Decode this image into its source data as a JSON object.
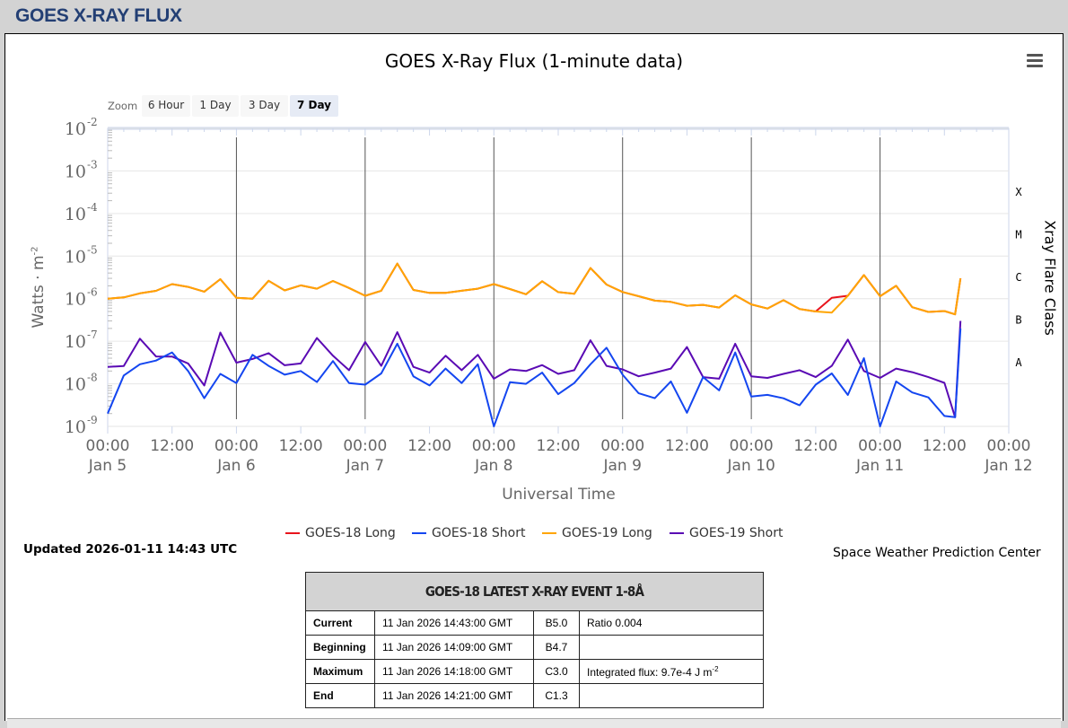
{
  "header": {
    "title": "GOES X-RAY FLUX"
  },
  "chart_header": {
    "menu_icon": "hamburger-icon"
  },
  "zoom": {
    "label": "Zoom",
    "buttons": [
      "6 Hour",
      "1 Day",
      "3 Day",
      "7 Day"
    ],
    "selected": "7 Day"
  },
  "legend": [
    {
      "name": "GOES-18 Long",
      "color": "#e8141c"
    },
    {
      "name": "GOES-18 Short",
      "color": "#1446f0"
    },
    {
      "name": "GOES-19 Long",
      "color": "#ffa500"
    },
    {
      "name": "GOES-19 Short",
      "color": "#5a0ab4"
    }
  ],
  "updated": "Updated 2026-01-11 14:43 UTC",
  "credit": "Space Weather Prediction Center",
  "event_table": {
    "title": "GOES-18 LATEST X-RAY EVENT 1-8Å",
    "rows": [
      {
        "label": "Current",
        "time": "11 Jan 2026 14:43:00 GMT",
        "class": "B5.0",
        "note": "Ratio 0.004"
      },
      {
        "label": "Beginning",
        "time": "11 Jan 2026 14:09:00 GMT",
        "class": "B4.7",
        "note": ""
      },
      {
        "label": "Maximum",
        "time": "11 Jan 2026 14:18:00 GMT",
        "class": "C3.0",
        "note": "Integrated flux: 9.7e-4 J m",
        "note_sup": "-2"
      },
      {
        "label": "End",
        "time": "11 Jan 2026 14:21:00 GMT",
        "class": "C1.3",
        "note": ""
      }
    ]
  },
  "chart_data": {
    "type": "line",
    "title": "GOES X-Ray Flux (1-minute data)",
    "xlabel": "Universal Time",
    "ylabel": "Watts · m",
    "ylabel_sup": "-2",
    "y2label": "Xray Flare Class",
    "yscale": "log",
    "ylim": [
      1e-09,
      0.01
    ],
    "yticks": [
      {
        "base": "10",
        "exp": "-2"
      },
      {
        "base": "10",
        "exp": "-3"
      },
      {
        "base": "10",
        "exp": "-4"
      },
      {
        "base": "10",
        "exp": "-5"
      },
      {
        "base": "10",
        "exp": "-6"
      },
      {
        "base": "10",
        "exp": "-7"
      },
      {
        "base": "10",
        "exp": "-8"
      },
      {
        "base": "10",
        "exp": "-9"
      }
    ],
    "flare_classes": [
      "X",
      "M",
      "C",
      "B",
      "A"
    ],
    "xlim_hours": [
      0,
      168
    ],
    "xticks": [
      {
        "t": "00:00",
        "d": "Jan 5"
      },
      {
        "t": "12:00",
        "d": ""
      },
      {
        "t": "00:00",
        "d": "Jan 6"
      },
      {
        "t": "12:00",
        "d": ""
      },
      {
        "t": "00:00",
        "d": "Jan 7"
      },
      {
        "t": "12:00",
        "d": ""
      },
      {
        "t": "00:00",
        "d": "Jan 8"
      },
      {
        "t": "12:00",
        "d": ""
      },
      {
        "t": "00:00",
        "d": "Jan 9"
      },
      {
        "t": "12:00",
        "d": ""
      },
      {
        "t": "00:00",
        "d": "Jan 10"
      },
      {
        "t": "12:00",
        "d": ""
      },
      {
        "t": "00:00",
        "d": "Jan 11"
      },
      {
        "t": "12:00",
        "d": ""
      },
      {
        "t": "00:00",
        "d": "Jan 12"
      }
    ],
    "x_hours": [
      0,
      3,
      6,
      9,
      12,
      15,
      18,
      21,
      24,
      27,
      30,
      33,
      36,
      39,
      42,
      45,
      48,
      51,
      54,
      57,
      60,
      63,
      66,
      69,
      72,
      75,
      78,
      81,
      84,
      87,
      90,
      93,
      96,
      99,
      102,
      105,
      108,
      111,
      114,
      117,
      120,
      123,
      126,
      129,
      132,
      135,
      138,
      141,
      144,
      147,
      150,
      153,
      156,
      158,
      159
    ],
    "series": [
      {
        "name": "GOES-18 Long",
        "values": [
          1e-06,
          1.1e-06,
          1.3e-06,
          1.6e-06,
          2.2e-06,
          1.8e-06,
          1.5e-06,
          2.8e-06,
          1.1e-06,
          1e-06,
          2.5e-06,
          1.6e-06,
          2e-06,
          1.8e-06,
          2.6e-06,
          1.7e-06,
          1.2e-06,
          1.5e-06,
          7e-06,
          1.6e-06,
          1.3e-06,
          1.4e-06,
          1.5e-06,
          1.8e-06,
          2.2e-06,
          1.6e-06,
          1.3e-06,
          2.5e-06,
          1.5e-06,
          1.3e-06,
          5e-06,
          2.2e-06,
          1.4e-06,
          1.2e-06,
          9e-07,
          8e-07,
          7e-07,
          7e-07,
          6.5e-07,
          1.2e-06,
          7e-07,
          6e-07,
          9e-07,
          6e-07,
          5e-07,
          1e-06,
          1.2e-06,
          3.5e-06,
          1.2e-06,
          2e-06,
          6e-07,
          5e-07,
          5e-07,
          4.5e-07,
          3e-06
        ]
      },
      {
        "name": "GOES-18 Short",
        "values": [
          2e-09,
          1.5e-08,
          3e-08,
          4e-08,
          5e-08,
          2e-08,
          5e-09,
          1.5e-08,
          1e-08,
          5e-08,
          3e-08,
          1.5e-08,
          2e-08,
          1.2e-08,
          3e-08,
          1e-08,
          1e-08,
          2e-08,
          8e-08,
          1.5e-08,
          1e-08,
          2e-08,
          1e-08,
          3e-08,
          1e-09,
          1e-08,
          1e-08,
          2e-08,
          5e-09,
          1e-08,
          3e-08,
          8e-08,
          1.5e-08,
          6e-09,
          5e-09,
          1e-08,
          2e-09,
          1.5e-08,
          8e-09,
          5e-08,
          5e-09,
          6e-09,
          4e-09,
          3e-09,
          1e-08,
          2e-08,
          5e-09,
          4e-08,
          1e-09,
          1e-08,
          6e-09,
          5e-09,
          2e-09,
          1.5e-09,
          2e-07
        ]
      },
      {
        "name": "GOES-19 Long",
        "values": [
          1e-06,
          1.1e-06,
          1.3e-06,
          1.6e-06,
          2.2e-06,
          1.8e-06,
          1.5e-06,
          2.8e-06,
          1.1e-06,
          1e-06,
          2.5e-06,
          1.6e-06,
          2e-06,
          1.8e-06,
          2.6e-06,
          1.7e-06,
          1.2e-06,
          1.5e-06,
          7e-06,
          1.6e-06,
          1.3e-06,
          1.4e-06,
          1.5e-06,
          1.8e-06,
          2.2e-06,
          1.6e-06,
          1.3e-06,
          2.5e-06,
          1.5e-06,
          1.3e-06,
          5e-06,
          2.2e-06,
          1.4e-06,
          1.2e-06,
          9e-07,
          8e-07,
          7e-07,
          7e-07,
          6.5e-07,
          1.2e-06,
          7e-07,
          6e-07,
          9e-07,
          6e-07,
          5e-07,
          4.5e-07,
          1.2e-06,
          3.5e-06,
          1.2e-06,
          2e-06,
          6e-07,
          5e-07,
          5e-07,
          4.5e-07,
          3e-06
        ]
      },
      {
        "name": "GOES-19 Short",
        "values": [
          2.5e-08,
          2.5e-08,
          1.2e-07,
          5e-08,
          4e-08,
          3e-08,
          1e-08,
          1.4e-07,
          3e-08,
          4e-08,
          6e-08,
          2.5e-08,
          3e-08,
          1.3e-07,
          4e-08,
          2e-08,
          1e-07,
          3e-08,
          1.5e-07,
          2.5e-08,
          2e-08,
          4e-08,
          2e-08,
          5e-08,
          1.5e-08,
          2e-08,
          2e-08,
          3e-08,
          1.5e-08,
          2e-08,
          1.1e-07,
          3e-08,
          2e-08,
          1.5e-08,
          2e-08,
          2e-08,
          7e-08,
          1.5e-08,
          1.5e-08,
          8e-08,
          1.5e-08,
          1.5e-08,
          1.5e-08,
          2e-08,
          1.5e-08,
          3e-08,
          1e-07,
          2e-08,
          1.5e-08,
          2e-08,
          1.8e-08,
          1.5e-08,
          1.2e-08,
          1.5e-09,
          3e-07
        ]
      }
    ]
  }
}
